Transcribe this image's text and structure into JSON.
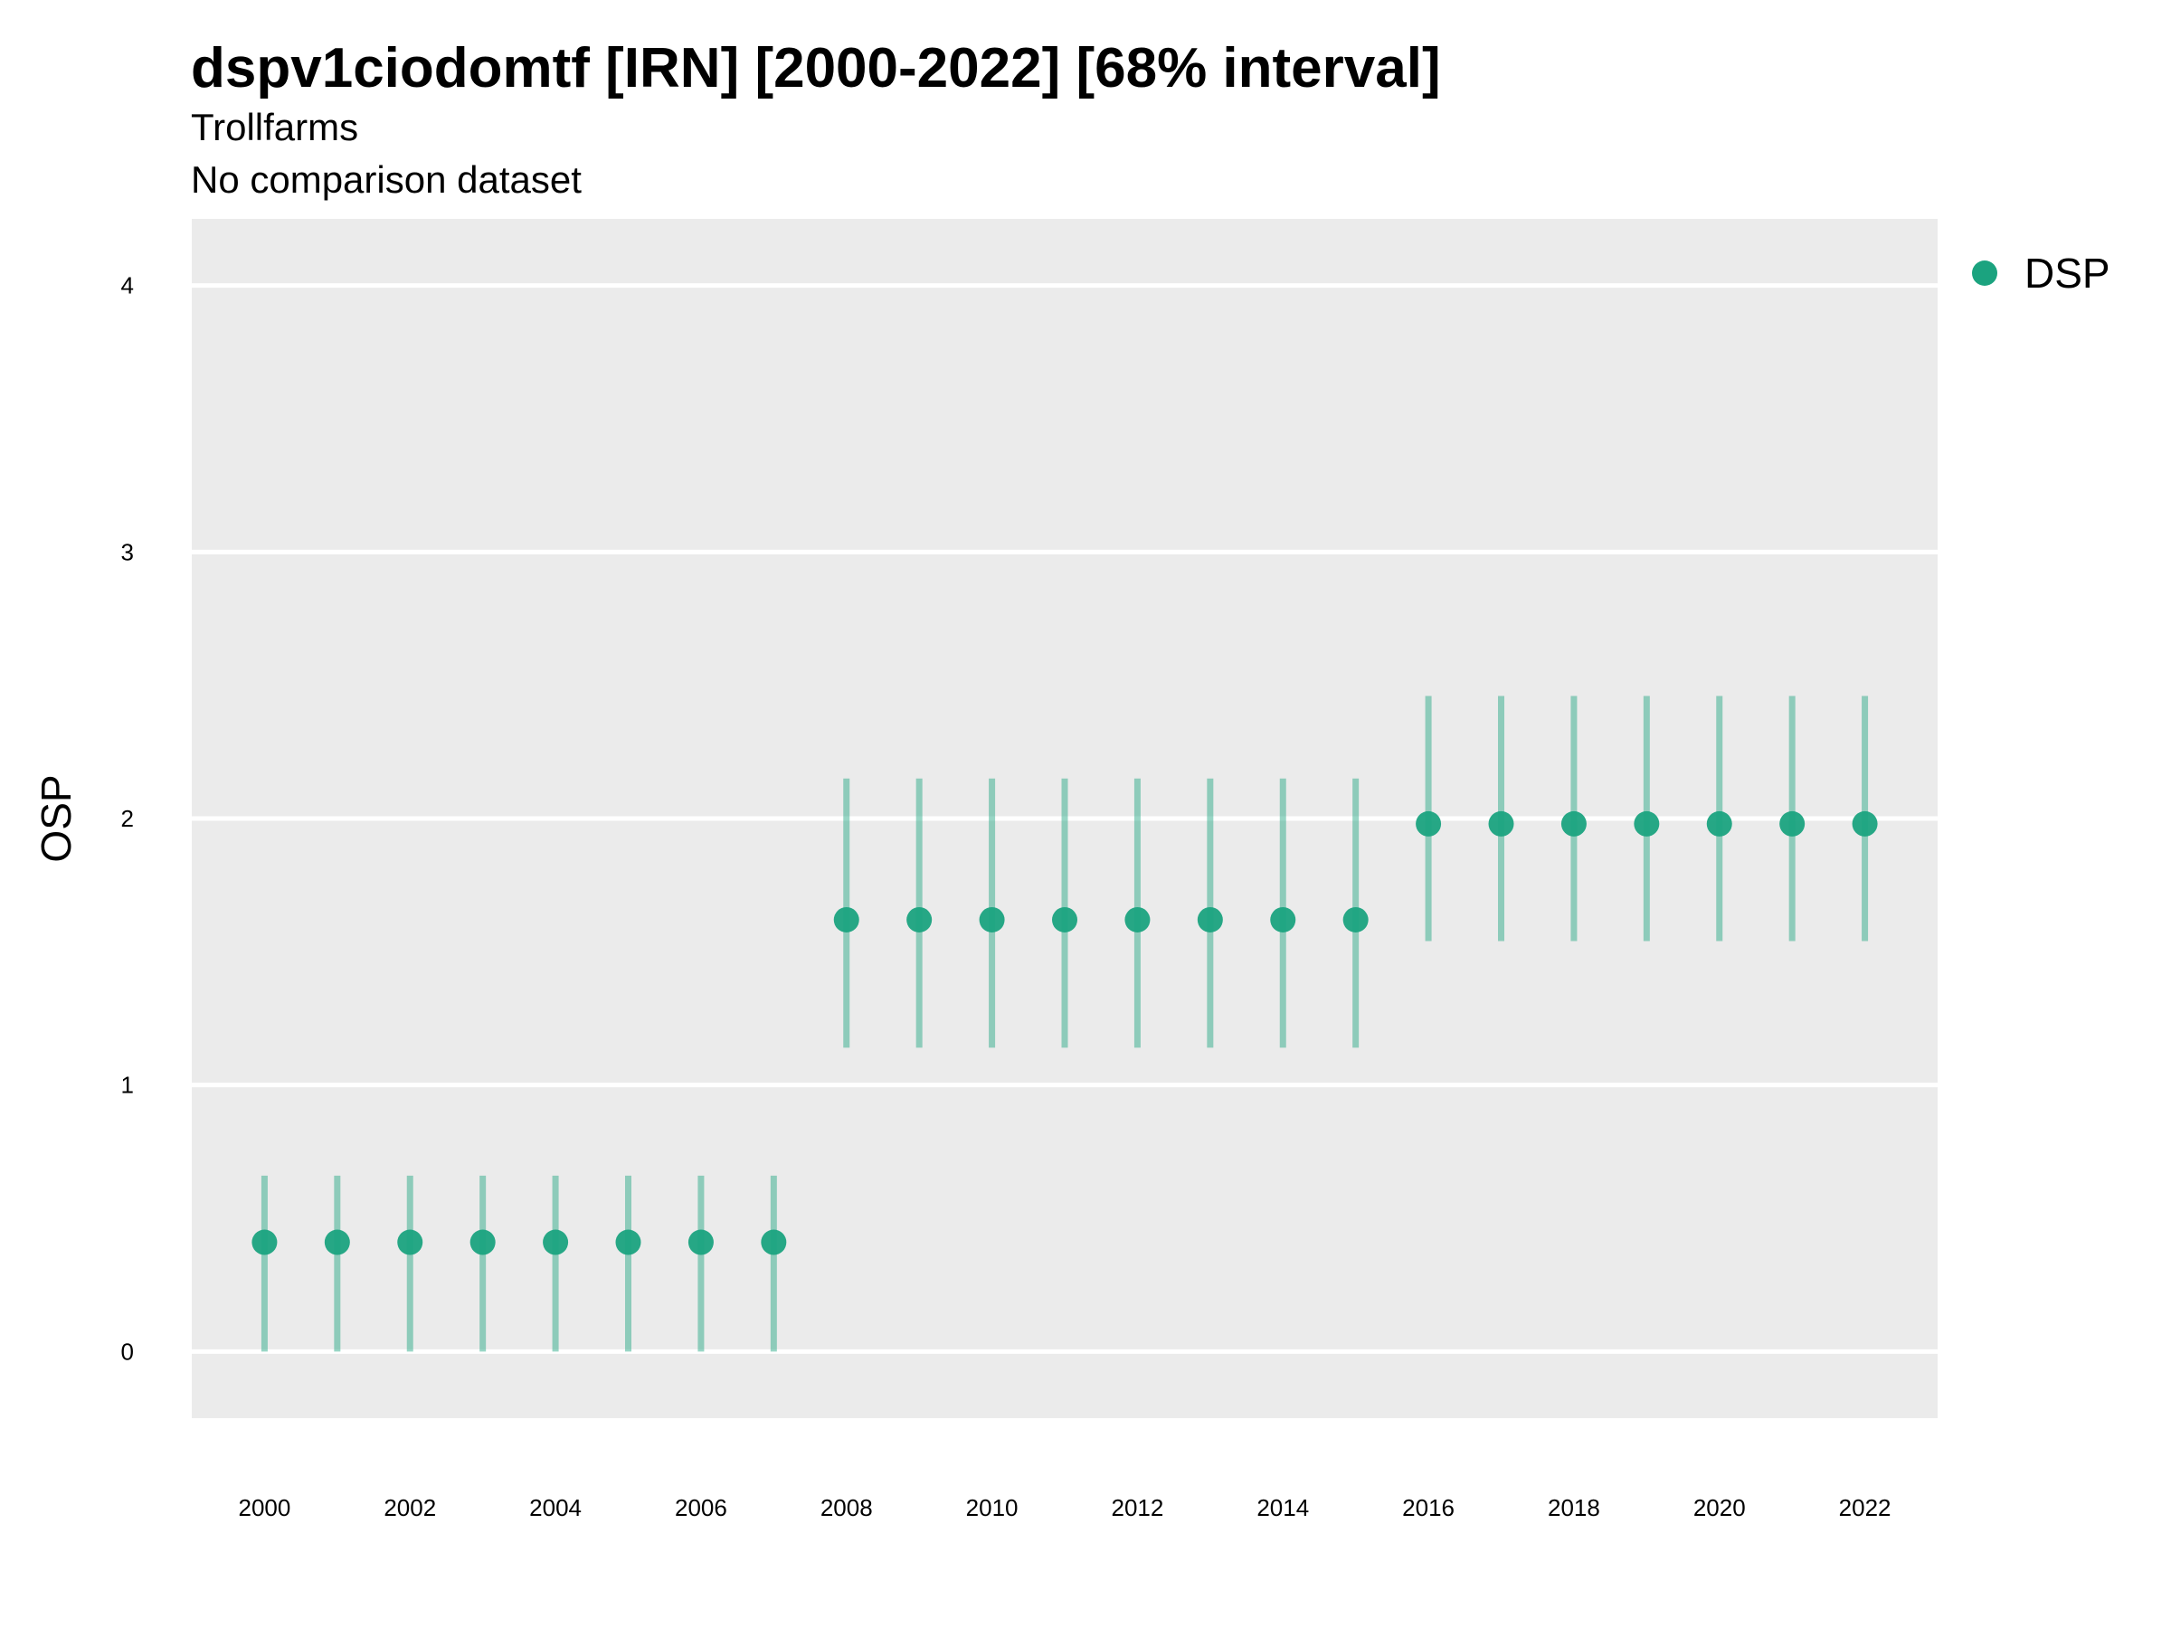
{
  "chart_data": {
    "type": "scatter",
    "title": "dspv1ciodomtf [IRN] [2000-2022] [68% interval]",
    "subtitle": "Trollfarms",
    "caption": "No comparison dataset",
    "xlabel": "",
    "ylabel": "OSP",
    "xlim": [
      1999,
      2023
    ],
    "ylim": [
      -0.25,
      4.25
    ],
    "x_ticks": [
      2000,
      2002,
      2004,
      2006,
      2008,
      2010,
      2012,
      2014,
      2016,
      2018,
      2020,
      2022
    ],
    "y_ticks": [
      0,
      1,
      2,
      3,
      4
    ],
    "grid": true,
    "legend_position": "right",
    "series": [
      {
        "name": "DSP",
        "color": "#1ba37f",
        "points": [
          {
            "x": 2000,
            "y": 0.41,
            "lower": 0.0,
            "upper": 0.66
          },
          {
            "x": 2001,
            "y": 0.41,
            "lower": 0.0,
            "upper": 0.66
          },
          {
            "x": 2002,
            "y": 0.41,
            "lower": 0.0,
            "upper": 0.66
          },
          {
            "x": 2003,
            "y": 0.41,
            "lower": 0.0,
            "upper": 0.66
          },
          {
            "x": 2004,
            "y": 0.41,
            "lower": 0.0,
            "upper": 0.66
          },
          {
            "x": 2005,
            "y": 0.41,
            "lower": 0.0,
            "upper": 0.66
          },
          {
            "x": 2006,
            "y": 0.41,
            "lower": 0.0,
            "upper": 0.66
          },
          {
            "x": 2007,
            "y": 0.41,
            "lower": 0.0,
            "upper": 0.66
          },
          {
            "x": 2008,
            "y": 1.62,
            "lower": 1.14,
            "upper": 2.15
          },
          {
            "x": 2009,
            "y": 1.62,
            "lower": 1.14,
            "upper": 2.15
          },
          {
            "x": 2010,
            "y": 1.62,
            "lower": 1.14,
            "upper": 2.15
          },
          {
            "x": 2011,
            "y": 1.62,
            "lower": 1.14,
            "upper": 2.15
          },
          {
            "x": 2012,
            "y": 1.62,
            "lower": 1.14,
            "upper": 2.15
          },
          {
            "x": 2013,
            "y": 1.62,
            "lower": 1.14,
            "upper": 2.15
          },
          {
            "x": 2014,
            "y": 1.62,
            "lower": 1.14,
            "upper": 2.15
          },
          {
            "x": 2015,
            "y": 1.62,
            "lower": 1.14,
            "upper": 2.15
          },
          {
            "x": 2016,
            "y": 1.98,
            "lower": 1.54,
            "upper": 2.46
          },
          {
            "x": 2017,
            "y": 1.98,
            "lower": 1.54,
            "upper": 2.46
          },
          {
            "x": 2018,
            "y": 1.98,
            "lower": 1.54,
            "upper": 2.46
          },
          {
            "x": 2019,
            "y": 1.98,
            "lower": 1.54,
            "upper": 2.46
          },
          {
            "x": 2020,
            "y": 1.98,
            "lower": 1.54,
            "upper": 2.46
          },
          {
            "x": 2021,
            "y": 1.98,
            "lower": 1.54,
            "upper": 2.46
          },
          {
            "x": 2022,
            "y": 1.98,
            "lower": 1.54,
            "upper": 2.46
          }
        ]
      }
    ]
  }
}
